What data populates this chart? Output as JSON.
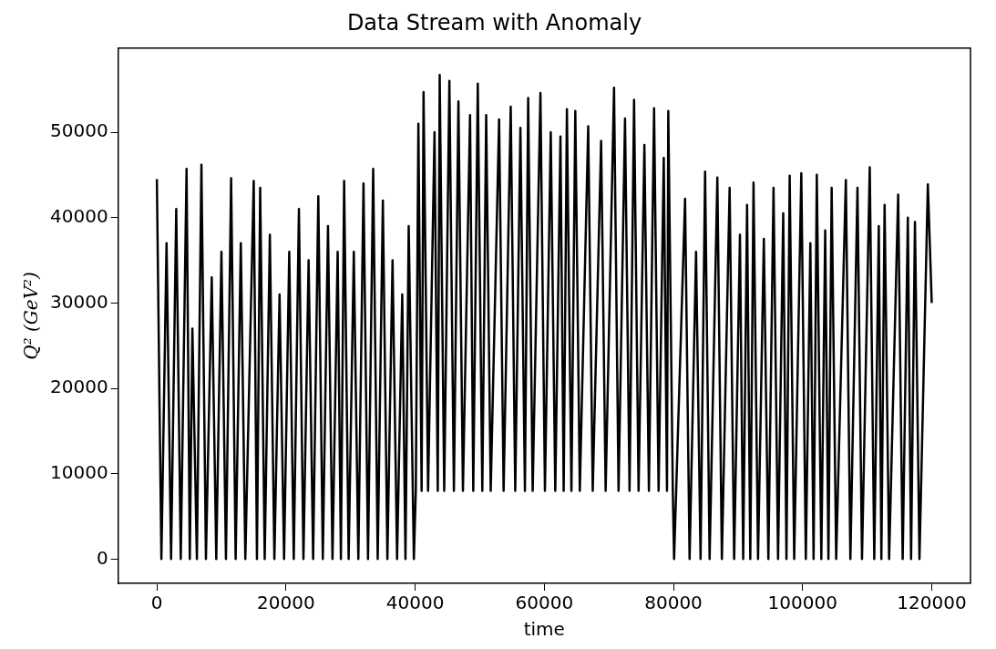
{
  "chart_data": {
    "type": "line",
    "title": "Data Stream with Anomaly",
    "xlabel": "time",
    "ylabel": "Q² (GeV²)",
    "xlim": [
      -6000,
      126000
    ],
    "xticks": [
      0,
      20000,
      40000,
      60000,
      80000,
      100000,
      120000
    ],
    "ylim": [
      -2850,
      59850
    ],
    "yticks": [
      0,
      10000,
      20000,
      30000,
      40000,
      50000
    ],
    "grid": false,
    "legend": false,
    "marker": "none",
    "line_style": "solid",
    "series": [
      {
        "color": "#000000",
        "x": [
          0,
          700,
          1500,
          2200,
          3000,
          3700,
          4600,
          5100,
          5500,
          6200,
          6900,
          7600,
          8500,
          9200,
          10000,
          10700,
          11500,
          12200,
          13000,
          13700,
          15000,
          15500,
          16000,
          16700,
          17500,
          18200,
          19000,
          19700,
          20500,
          21200,
          22000,
          22700,
          23500,
          24200,
          25000,
          25700,
          26500,
          27200,
          28000,
          28500,
          29000,
          29700,
          30500,
          31200,
          32000,
          32700,
          33500,
          34200,
          35000,
          35700,
          36500,
          37200,
          38000,
          38500,
          39000,
          39800,
          40100,
          40500,
          41000,
          41300,
          42000,
          43000,
          43500,
          43800,
          44500,
          45300,
          46000,
          46700,
          47400,
          48500,
          49000,
          49700,
          50400,
          51000,
          51700,
          53000,
          53700,
          54800,
          55500,
          56300,
          57000,
          57500,
          58200,
          59400,
          60100,
          61000,
          61700,
          62500,
          63000,
          63500,
          64200,
          64800,
          65500,
          66800,
          67500,
          68800,
          69500,
          70800,
          71500,
          72500,
          73200,
          73900,
          74600,
          75500,
          76200,
          77000,
          77700,
          78500,
          79000,
          79200,
          79900,
          80100,
          81800,
          82500,
          83500,
          84200,
          84900,
          85600,
          86800,
          87500,
          88700,
          89400,
          90300,
          90800,
          91400,
          91900,
          92400,
          93100,
          94000,
          94700,
          95500,
          96200,
          97000,
          97500,
          98000,
          98700,
          99800,
          100500,
          101200,
          101700,
          102200,
          102900,
          103500,
          104000,
          104500,
          105200,
          106700,
          107400,
          108500,
          109200,
          110400,
          111100,
          111800,
          112200,
          112700,
          113400,
          114800,
          115500,
          116300,
          116800,
          117400,
          118100,
          119400,
          120000
        ],
        "values": [
          44500,
          0,
          37000,
          0,
          41000,
          0,
          45700,
          0,
          27000,
          0,
          46200,
          0,
          33000,
          0,
          36000,
          0,
          44600,
          0,
          37000,
          0,
          44300,
          0,
          43500,
          0,
          38000,
          0,
          31000,
          0,
          36000,
          0,
          41000,
          0,
          35000,
          0,
          42500,
          0,
          39000,
          0,
          36000,
          0,
          44300,
          0,
          36000,
          0,
          44000,
          0,
          45700,
          0,
          42000,
          0,
          35000,
          0,
          31000,
          0,
          39000,
          0,
          8000,
          51000,
          8000,
          54700,
          8000,
          50000,
          8000,
          56700,
          8000,
          56000,
          8000,
          53600,
          8000,
          52000,
          8000,
          55700,
          8000,
          52000,
          8000,
          51500,
          8000,
          53000,
          8000,
          50500,
          8000,
          54000,
          8000,
          54600,
          8000,
          50000,
          8000,
          49500,
          8000,
          52700,
          8000,
          52500,
          8000,
          50700,
          8000,
          49000,
          8000,
          55200,
          8000,
          51600,
          8000,
          53800,
          8000,
          48500,
          8000,
          52800,
          8000,
          47000,
          8000,
          52500,
          8000,
          0,
          42200,
          0,
          36000,
          0,
          45400,
          0,
          44700,
          0,
          43500,
          0,
          38000,
          0,
          41500,
          0,
          44100,
          0,
          37500,
          0,
          43500,
          0,
          40500,
          0,
          44900,
          0,
          45200,
          0,
          37000,
          0,
          45000,
          0,
          38500,
          0,
          43500,
          0,
          44400,
          0,
          43500,
          0,
          45900,
          0,
          39000,
          0,
          41500,
          0,
          42700,
          0,
          40000,
          0,
          39500,
          0,
          43900,
          30000
        ]
      }
    ]
  }
}
